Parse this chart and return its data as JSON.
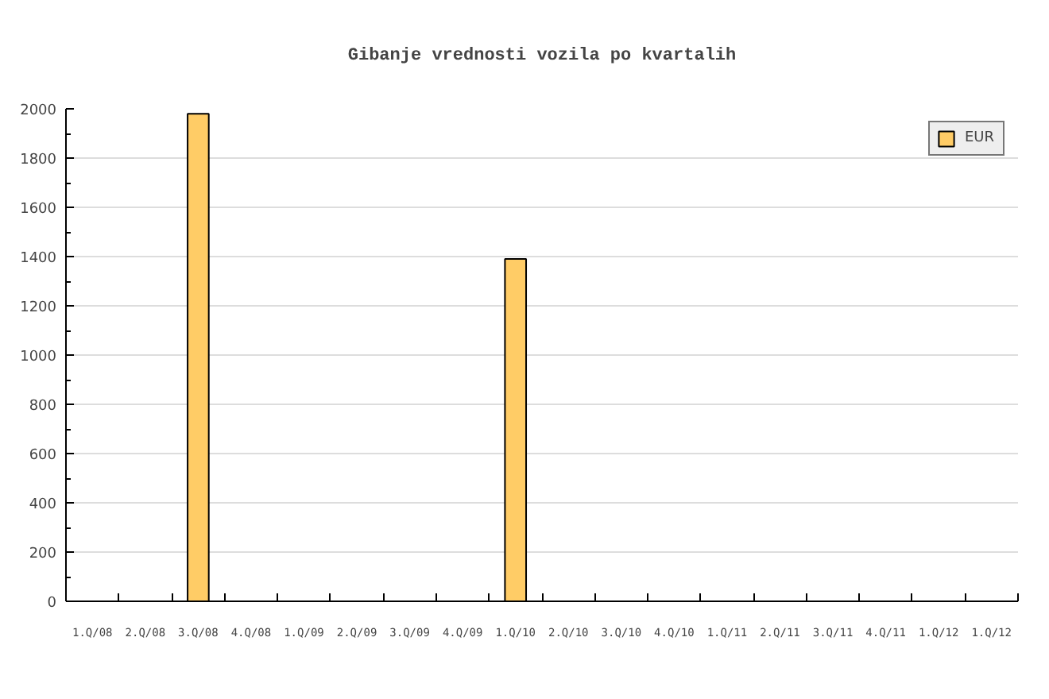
{
  "chart_data": {
    "type": "bar",
    "title": "Gibanje vrednosti vozila po kvartalih",
    "categories": [
      "1.Q/08",
      "2.Q/08",
      "3.Q/08",
      "4.Q/08",
      "1.Q/09",
      "2.Q/09",
      "3.Q/09",
      "4.Q/09",
      "1.Q/10",
      "2.Q/10",
      "3.Q/10",
      "4.Q/10",
      "1.Q/11",
      "2.Q/11",
      "3.Q/11",
      "4.Q/11",
      "1.Q/12",
      "1.Q/12"
    ],
    "series": [
      {
        "name": "EUR",
        "color": "#ffcc66",
        "values": [
          null,
          null,
          1980,
          null,
          null,
          null,
          null,
          null,
          1390,
          null,
          null,
          null,
          null,
          null,
          null,
          null,
          null,
          null
        ]
      }
    ],
    "ylim": [
      0,
      2000
    ],
    "yticks": [
      0,
      200,
      400,
      600,
      800,
      1000,
      1200,
      1400,
      1600,
      1800,
      2000
    ],
    "grid": "y",
    "legend": "top right"
  }
}
